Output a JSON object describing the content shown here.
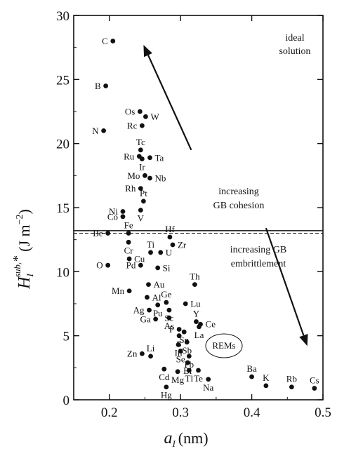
{
  "chart_data": {
    "type": "scatter",
    "xlim": [
      0.15,
      0.5
    ],
    "ylim": [
      0,
      30
    ],
    "x_ticks": [
      0.2,
      0.3,
      0.4,
      0.5
    ],
    "y_ticks": [
      0,
      5,
      10,
      15,
      20,
      25,
      30
    ],
    "x_tick_labels": [
      "0.2",
      "0.3",
      "0.4",
      "0.5"
    ],
    "y_tick_labels": [
      "0",
      "5",
      "10",
      "15",
      "20",
      "25",
      "30"
    ],
    "xlabel": {
      "symbol": "a",
      "sub": "I",
      "unit": "(nm)"
    },
    "ylabel": {
      "symbol": "H",
      "sub": "I",
      "sup": "sub,",
      "star": "*",
      "unit": "(J m",
      "unit_sup": "−2",
      "unit_end": ")"
    },
    "reference_lines": [
      {
        "y": 13.2,
        "style": "solid"
      },
      {
        "y": 13.0,
        "style": "dashed"
      }
    ],
    "annotations": {
      "ideal_solution": [
        "ideal",
        "solution"
      ],
      "cohesion": [
        "increasing",
        "GB cohesion"
      ],
      "embrittlement": [
        "increasing GB",
        "embrittlement"
      ],
      "rems": "REMs"
    },
    "arrows": [
      {
        "from": [
          0.315,
          19.5
        ],
        "to": [
          0.248,
          27.7
        ]
      },
      {
        "from": [
          0.42,
          13.4
        ],
        "to": [
          0.478,
          4.2
        ]
      }
    ],
    "points": [
      {
        "label": "C",
        "x": 0.205,
        "y": 28.0,
        "side": "left"
      },
      {
        "label": "B",
        "x": 0.195,
        "y": 24.5,
        "side": "left"
      },
      {
        "label": "Os",
        "x": 0.243,
        "y": 22.5,
        "side": "left"
      },
      {
        "label": "W",
        "x": 0.251,
        "y": 22.1,
        "side": "right"
      },
      {
        "label": "Rc",
        "x": 0.246,
        "y": 21.4,
        "side": "left"
      },
      {
        "label": "N",
        "x": 0.192,
        "y": 21.0,
        "side": "left"
      },
      {
        "label": "Tc",
        "x": 0.244,
        "y": 19.5,
        "side": "above"
      },
      {
        "label": "Ru",
        "x": 0.242,
        "y": 19.0,
        "side": "left"
      },
      {
        "label": "Ta",
        "x": 0.257,
        "y": 18.9,
        "side": "right"
      },
      {
        "label": "Ir",
        "x": 0.246,
        "y": 18.8,
        "side": "below"
      },
      {
        "label": "Mo",
        "x": 0.25,
        "y": 17.5,
        "side": "left"
      },
      {
        "label": "Nb",
        "x": 0.257,
        "y": 17.3,
        "side": "right"
      },
      {
        "label": "Rh",
        "x": 0.244,
        "y": 16.5,
        "side": "left"
      },
      {
        "label": "Pt",
        "x": 0.248,
        "y": 15.5,
        "side": "above"
      },
      {
        "label": "Ni",
        "x": 0.219,
        "y": 14.7,
        "side": "left"
      },
      {
        "label": "V",
        "x": 0.244,
        "y": 14.8,
        "side": "below"
      },
      {
        "label": "Co",
        "x": 0.219,
        "y": 14.3,
        "side": "left"
      },
      {
        "label": "Be",
        "x": 0.198,
        "y": 13.0,
        "side": "left"
      },
      {
        "label": "Fe",
        "x": 0.227,
        "y": 13.0,
        "side": "above"
      },
      {
        "label": "Hf",
        "x": 0.285,
        "y": 12.7,
        "side": "above"
      },
      {
        "label": "Cr",
        "x": 0.227,
        "y": 12.3,
        "side": "below"
      },
      {
        "label": "Zr",
        "x": 0.289,
        "y": 12.1,
        "side": "right"
      },
      {
        "label": "Ti",
        "x": 0.258,
        "y": 11.5,
        "side": "above"
      },
      {
        "label": "Cu",
        "x": 0.228,
        "y": 11.0,
        "side": "right"
      },
      {
        "label": "U",
        "x": 0.272,
        "y": 11.5,
        "side": "right"
      },
      {
        "label": "O",
        "x": 0.198,
        "y": 10.5,
        "side": "left"
      },
      {
        "label": "Pd",
        "x": 0.244,
        "y": 10.5,
        "side": "left"
      },
      {
        "label": "Si",
        "x": 0.268,
        "y": 10.3,
        "side": "right"
      },
      {
        "label": "Th",
        "x": 0.32,
        "y": 9.0,
        "side": "above"
      },
      {
        "label": "Au",
        "x": 0.255,
        "y": 9.0,
        "side": "right"
      },
      {
        "label": "Mn",
        "x": 0.228,
        "y": 8.5,
        "side": "left"
      },
      {
        "label": "Al",
        "x": 0.253,
        "y": 8.0,
        "side": "right"
      },
      {
        "label": "Ge",
        "x": 0.28,
        "y": 7.6,
        "side": "above"
      },
      {
        "label": "Lu",
        "x": 0.307,
        "y": 7.5,
        "side": "right"
      },
      {
        "label": "Ag",
        "x": 0.256,
        "y": 7.0,
        "side": "left"
      },
      {
        "label": "Pu",
        "x": 0.268,
        "y": 7.4,
        "side": "below"
      },
      {
        "label": "Sc",
        "x": 0.284,
        "y": 7.0,
        "side": "below"
      },
      {
        "label": "Y",
        "x": 0.322,
        "y": 6.1,
        "side": "above"
      },
      {
        "label": "Ce",
        "x": 0.328,
        "y": 5.9,
        "side": "right"
      },
      {
        "label": "As",
        "x": 0.284,
        "y": 6.4,
        "side": "below"
      },
      {
        "label": "Ga",
        "x": 0.265,
        "y": 6.3,
        "side": "left"
      },
      {
        "label": "La",
        "x": 0.326,
        "y": 5.7,
        "side": "below"
      },
      {
        "label": "P",
        "x": 0.298,
        "y": 5.5,
        "side": "left"
      },
      {
        "label": "Sn",
        "x": 0.305,
        "y": 5.3,
        "side": "below"
      },
      {
        "label": "S",
        "x": 0.298,
        "y": 5.0,
        "side": "below"
      },
      {
        "label": "Sb",
        "x": 0.309,
        "y": 4.5,
        "side": "below"
      },
      {
        "label": "In",
        "x": 0.297,
        "y": 4.3,
        "side": "below"
      },
      {
        "label": "Se",
        "x": 0.3,
        "y": 3.8,
        "side": "below"
      },
      {
        "label": "Zn",
        "x": 0.246,
        "y": 3.6,
        "side": "left"
      },
      {
        "label": "Li",
        "x": 0.258,
        "y": 3.4,
        "side": "above"
      },
      {
        "label": "Pb",
        "x": 0.312,
        "y": 3.4,
        "side": "below"
      },
      {
        "label": "Bi",
        "x": 0.31,
        "y": 2.9,
        "side": "below"
      },
      {
        "label": "Ba",
        "x": 0.4,
        "y": 1.8,
        "side": "above"
      },
      {
        "label": "Cd",
        "x": 0.277,
        "y": 2.4,
        "side": "below"
      },
      {
        "label": "Mg",
        "x": 0.296,
        "y": 2.2,
        "side": "below"
      },
      {
        "label": "Tl",
        "x": 0.312,
        "y": 2.3,
        "side": "below"
      },
      {
        "label": "Te",
        "x": 0.325,
        "y": 2.3,
        "side": "below"
      },
      {
        "label": "K",
        "x": 0.42,
        "y": 1.1,
        "side": "above"
      },
      {
        "label": "Rb",
        "x": 0.456,
        "y": 1.0,
        "side": "above"
      },
      {
        "label": "Cs",
        "x": 0.488,
        "y": 0.9,
        "side": "above"
      },
      {
        "label": "Na",
        "x": 0.339,
        "y": 1.6,
        "side": "below"
      },
      {
        "label": "Hg",
        "x": 0.28,
        "y": 1.0,
        "side": "below"
      }
    ]
  }
}
